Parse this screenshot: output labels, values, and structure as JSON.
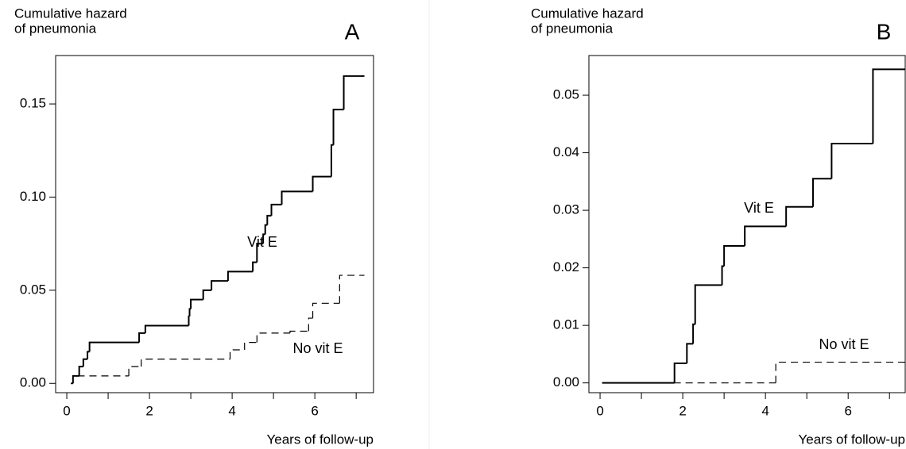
{
  "chart_data": [
    {
      "type": "step",
      "title": "A",
      "ylabel": [
        "Cumulative hazard",
        "of pneumonia"
      ],
      "xlabel": "Years of follow-up",
      "xlim": [
        -0.27,
        7.42
      ],
      "ylim": [
        -0.005,
        0.176
      ],
      "xticks": [
        0,
        2,
        4,
        6
      ],
      "xminor": [
        1,
        3,
        5,
        7
      ],
      "yticks": [
        {
          "value": 0,
          "label": "0.00"
        },
        {
          "value": 0.05,
          "label": "0.05"
        },
        {
          "value": 0.1,
          "label": "0.10"
        },
        {
          "value": 0.15,
          "label": "0.15"
        }
      ],
      "series": [
        {
          "name": "Vit E",
          "color": "#000000",
          "dashed": false,
          "x_end": 7.2,
          "x": [
            0.1,
            0.15,
            0.3,
            0.4,
            0.5,
            0.55,
            1.75,
            1.9,
            2.95,
            2.97,
            3.0,
            3.3,
            3.5,
            3.9,
            4.5,
            4.6,
            4.75,
            4.8,
            4.85,
            4.95,
            5.2,
            5.95,
            6.4,
            6.45,
            6.7
          ],
          "values": [
            0,
            0.004,
            0.009,
            0.013,
            0.017,
            0.022,
            0.027,
            0.031,
            0.036,
            0.04,
            0.045,
            0.05,
            0.055,
            0.06,
            0.065,
            0.075,
            0.08,
            0.085,
            0.09,
            0.096,
            0.103,
            0.111,
            0.128,
            0.147,
            0.165
          ]
        },
        {
          "name": "No vit E",
          "color": "#000000",
          "dashed": true,
          "x_end": 7.2,
          "x": [
            0.1,
            0.15,
            1.5,
            1.8,
            3.95,
            4.3,
            4.6,
            5.4,
            5.85,
            5.95,
            6.6
          ],
          "values": [
            0,
            0.004,
            0.009,
            0.013,
            0.018,
            0.022,
            0.027,
            0.028,
            0.035,
            0.043,
            0.058
          ]
        }
      ]
    },
    {
      "type": "step",
      "title": "B",
      "ylabel": [
        "Cumulative hazard",
        "of pneumonia"
      ],
      "xlabel": "Years of follow-up",
      "xlim": [
        -0.27,
        7.38
      ],
      "ylim": [
        -0.0017,
        0.0569
      ],
      "xticks": [
        0,
        2,
        4,
        6
      ],
      "xminor": [
        1,
        3,
        5,
        7
      ],
      "yticks": [
        {
          "value": 0,
          "label": "0.00"
        },
        {
          "value": 0.01,
          "label": "0.01"
        },
        {
          "value": 0.02,
          "label": "0.02"
        },
        {
          "value": 0.03,
          "label": "0.03"
        },
        {
          "value": 0.04,
          "label": "0.04"
        },
        {
          "value": 0.05,
          "label": "0.05"
        }
      ],
      "series": [
        {
          "name": "Vit E",
          "color": "#000000",
          "dashed": false,
          "x_end": 7.38,
          "x": [
            0.05,
            1.8,
            2.1,
            2.25,
            2.3,
            2.95,
            3.0,
            3.5,
            4.5,
            5.15,
            5.6,
            6.6
          ],
          "values": [
            0,
            0.0034,
            0.0068,
            0.0102,
            0.017,
            0.0203,
            0.0238,
            0.0272,
            0.0306,
            0.0355,
            0.0416,
            0.0545
          ]
        },
        {
          "name": "No vit E",
          "color": "#000000",
          "dashed": true,
          "x_end": 7.38,
          "x": [
            0.05,
            4.25
          ],
          "values": [
            0,
            0.0036
          ]
        }
      ]
    }
  ]
}
